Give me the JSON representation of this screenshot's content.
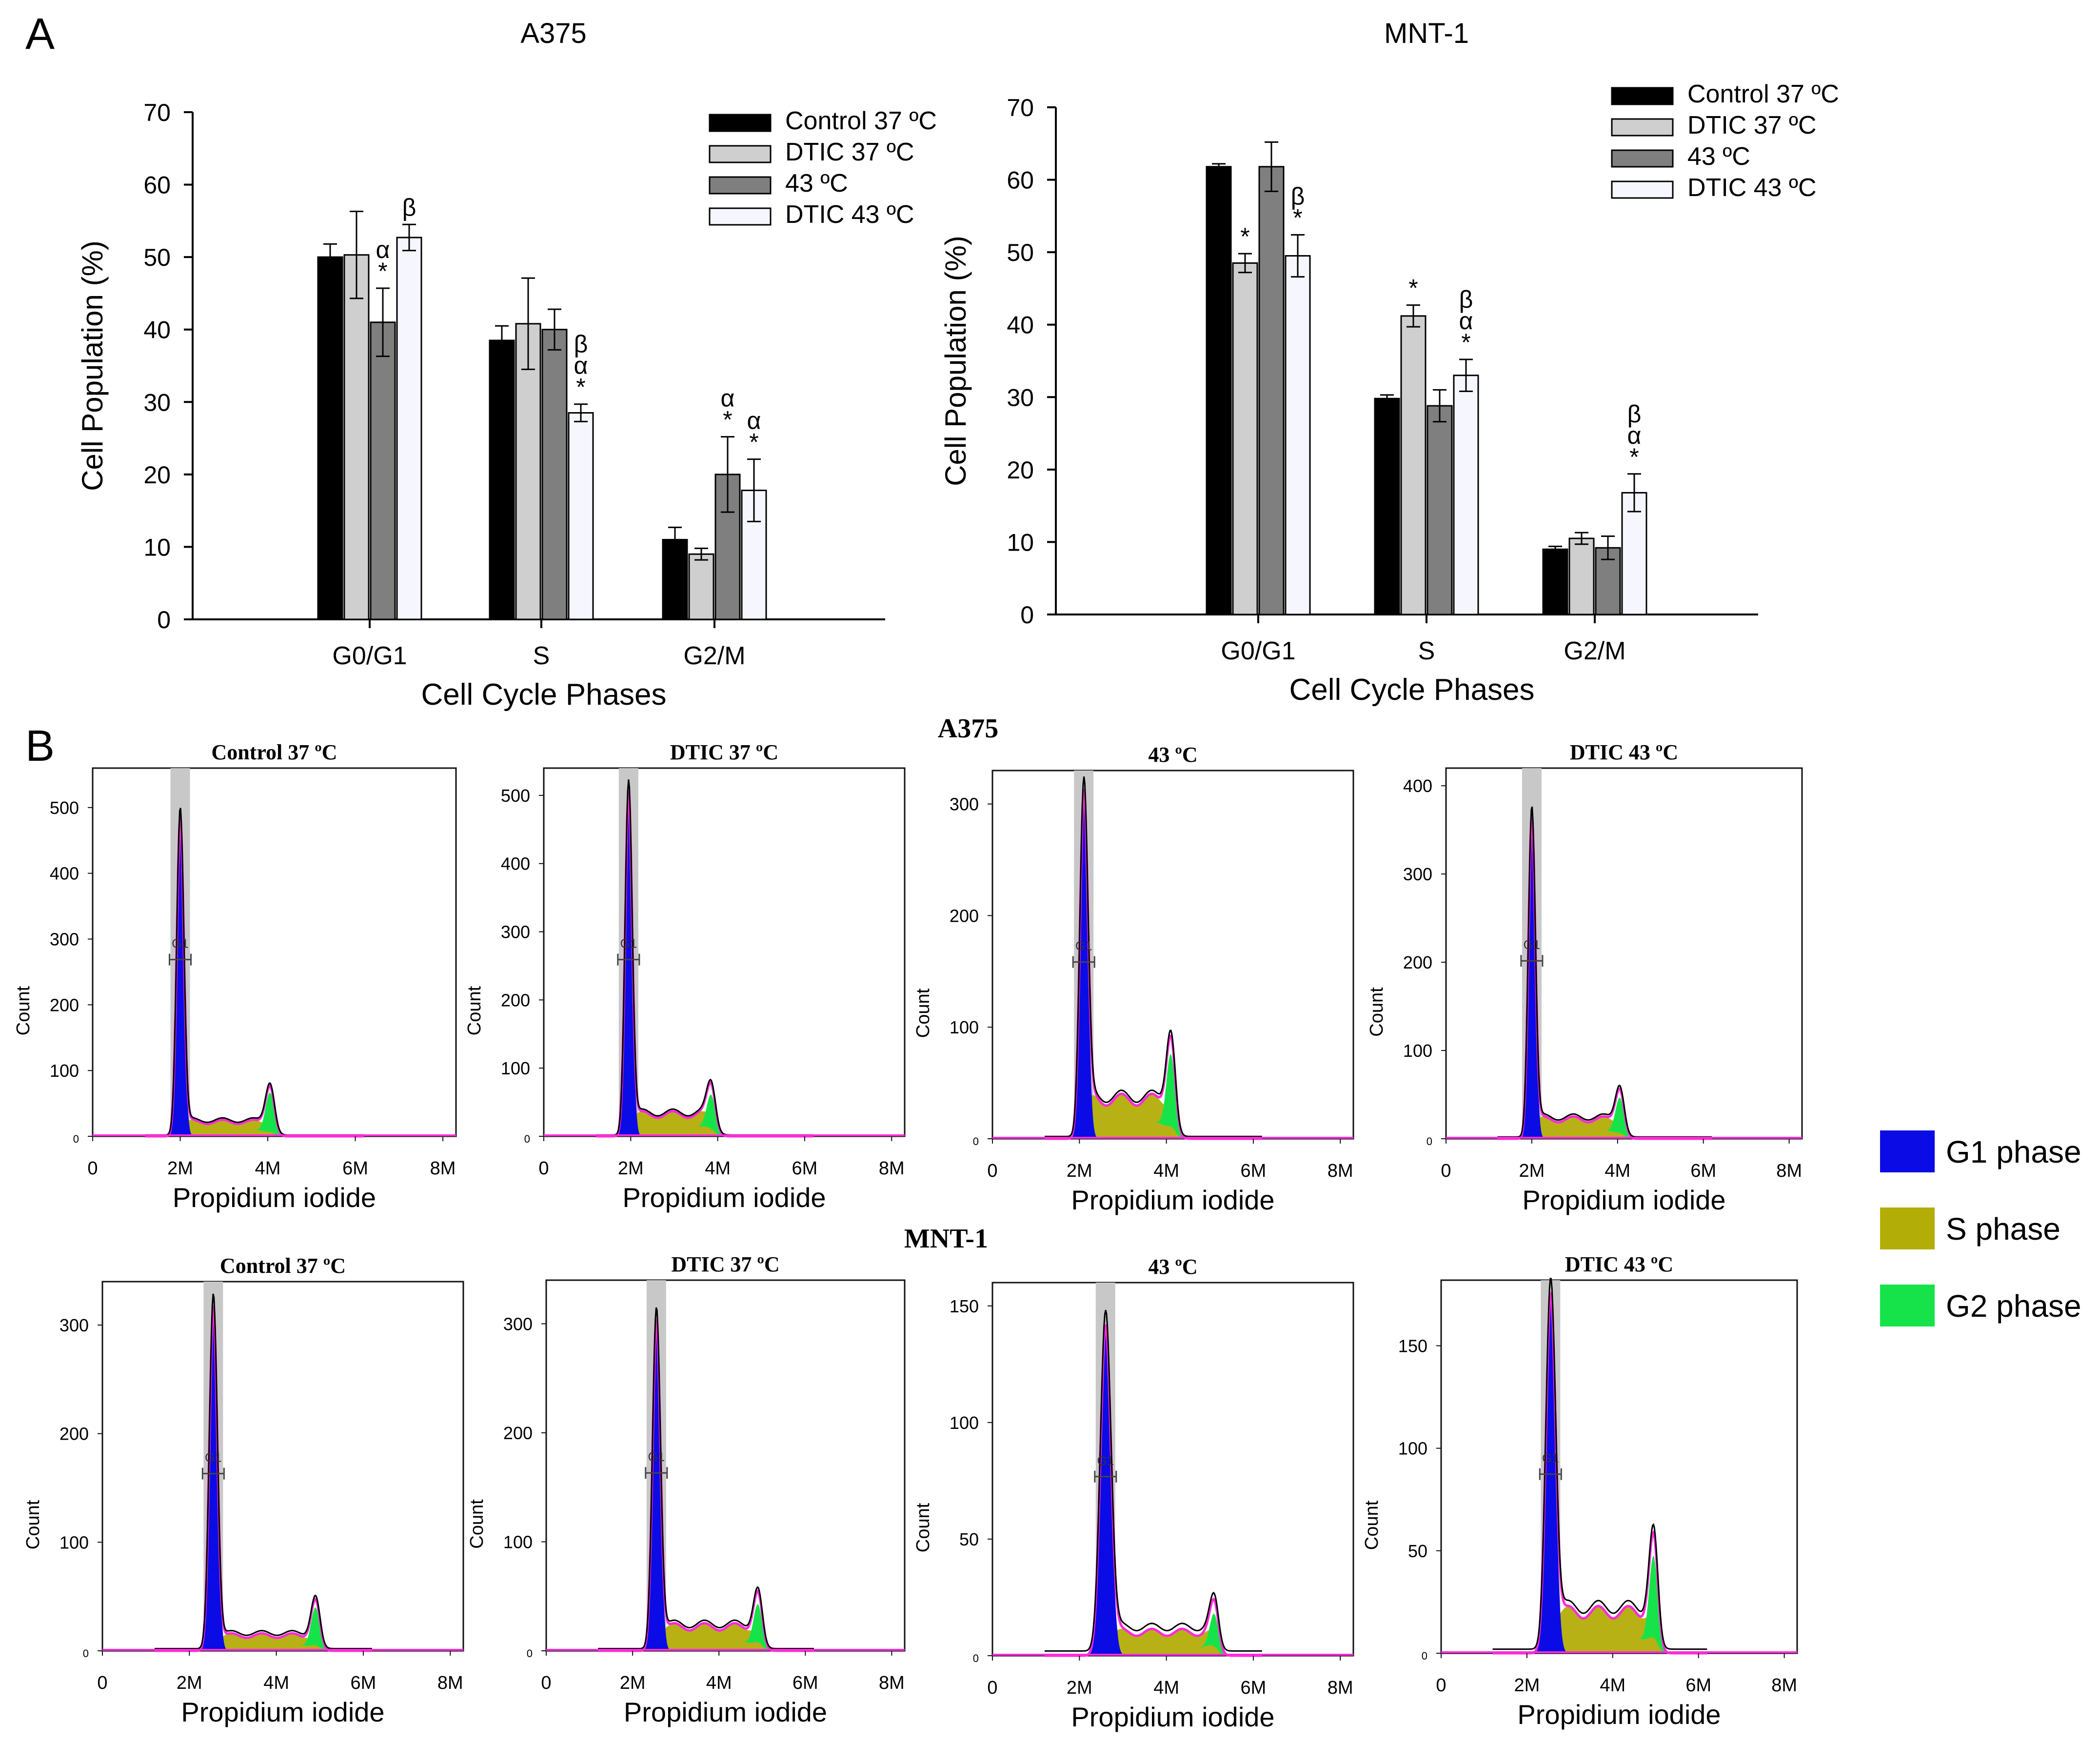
{
  "panel_labels": {
    "a": "A",
    "b": "B"
  },
  "colors": {
    "g1": "#0b0be6",
    "s": "#b3ad08",
    "g2": "#16e34a",
    "fit": "#ff2bd9",
    "gate": "#c8c8c8"
  },
  "legend_b": [
    {
      "label": "G1 phase",
      "color": "#0b0be6"
    },
    {
      "label": "S phase",
      "color": "#b3ad08"
    },
    {
      "label": "G2 phase",
      "color": "#16e34a"
    }
  ],
  "row_titles": [
    "A375",
    "MNT-1"
  ],
  "chart_data": [
    {
      "type": "bar",
      "title": "A375",
      "xlabel": "Cell Cycle Phases",
      "ylabel": "Cell Population (%)",
      "ylim": [
        0,
        70
      ],
      "yticks": [
        0,
        10,
        20,
        30,
        40,
        50,
        60,
        70
      ],
      "legend_position": "top-right",
      "categories": [
        "G0/G1",
        "S",
        "G2/M"
      ],
      "series": [
        {
          "name": "Control 37 ºC",
          "color": "#000000",
          "values": [
            50,
            38.5,
            11
          ],
          "errors": [
            1.8,
            2.0,
            1.7
          ]
        },
        {
          "name": "DTIC 37 ºC",
          "color": "#cfcfcf",
          "values": [
            50.3,
            40.8,
            9
          ],
          "errors": [
            6.0,
            6.3,
            0.8
          ]
        },
        {
          "name": "43 ºC",
          "color": "#7f7f7f",
          "values": [
            41,
            40,
            20
          ],
          "errors": [
            4.7,
            2.8,
            5.2
          ]
        },
        {
          "name": "DTIC 43 ºC",
          "color": "#f6f6ff",
          "values": [
            52.7,
            28.5,
            17.8
          ],
          "errors": [
            1.8,
            1.2,
            4.3
          ]
        }
      ],
      "annotations": [
        {
          "category": 0,
          "series": 2,
          "text": [
            "*",
            "α"
          ]
        },
        {
          "category": 0,
          "series": 3,
          "text": [
            "β"
          ]
        },
        {
          "category": 1,
          "series": 3,
          "text": [
            "*",
            "α",
            "β"
          ]
        },
        {
          "category": 2,
          "series": 2,
          "text": [
            "*",
            "α"
          ]
        },
        {
          "category": 2,
          "series": 3,
          "text": [
            "*",
            "α"
          ]
        }
      ]
    },
    {
      "type": "bar",
      "title": "MNT-1",
      "xlabel": "Cell Cycle Phases",
      "ylabel": "Cell Population (%)",
      "ylim": [
        0,
        70
      ],
      "yticks": [
        0,
        10,
        20,
        30,
        40,
        50,
        60,
        70
      ],
      "legend_position": "top-right",
      "categories": [
        "G0/G1",
        "S",
        "G2/M"
      ],
      "series": [
        {
          "name": "Control 37 ºC",
          "color": "#000000",
          "values": [
            61.8,
            29.8,
            9
          ],
          "errors": [
            0.4,
            0.5,
            0.4
          ]
        },
        {
          "name": "DTIC 37 ºC",
          "color": "#cfcfcf",
          "values": [
            48.5,
            41.2,
            10.5
          ],
          "errors": [
            1.3,
            1.5,
            0.8
          ]
        },
        {
          "name": "43 ºC",
          "color": "#7f7f7f",
          "values": [
            61.8,
            28.8,
            9.2
          ],
          "errors": [
            3.4,
            2.2,
            1.6
          ]
        },
        {
          "name": "DTIC 43 ºC",
          "color": "#f6f6ff",
          "values": [
            49.5,
            33,
            16.8
          ],
          "errors": [
            2.9,
            2.2,
            2.6
          ]
        }
      ],
      "annotations": [
        {
          "category": 0,
          "series": 1,
          "text": [
            "*"
          ]
        },
        {
          "category": 0,
          "series": 3,
          "text": [
            "*",
            "β"
          ]
        },
        {
          "category": 1,
          "series": 1,
          "text": [
            "*"
          ]
        },
        {
          "category": 1,
          "series": 3,
          "text": [
            "*",
            "α",
            "β"
          ]
        },
        {
          "category": 2,
          "series": 3,
          "text": [
            "*",
            "α",
            "β"
          ]
        }
      ]
    }
  ],
  "histograms": [
    {
      "title": "Control 37 ºC",
      "cell_line": "A375",
      "ylabel": "Count",
      "xlabel": "Propidium iodide",
      "yticks": [
        0,
        100,
        200,
        300,
        400,
        500
      ],
      "ymax": 560,
      "xticks": [
        "0",
        "2M",
        "4M",
        "6M",
        "8M"
      ],
      "gate_label": "G1",
      "g1_peak": 2.0,
      "g1_height": 480,
      "g1_width": 0.08,
      "s_level": 22,
      "g2_peak": 4.05,
      "g2_height": 60
    },
    {
      "title": "DTIC 37 ºC",
      "cell_line": "A375",
      "ylabel": "Count",
      "xlabel": "Propidium iodide",
      "yticks": [
        0,
        100,
        200,
        300,
        400,
        500
      ],
      "ymax": 540,
      "xticks": [
        "0",
        "2M",
        "4M",
        "6M",
        "8M"
      ],
      "gate_label": "G1",
      "g1_peak": 1.95,
      "g1_height": 500,
      "g1_width": 0.08,
      "s_level": 32,
      "g2_peak": 3.85,
      "g2_height": 50
    },
    {
      "title": "43 ºC",
      "cell_line": "A375",
      "ylabel": "Count",
      "xlabel": "Propidium iodide",
      "yticks": [
        0,
        100,
        200,
        300
      ],
      "ymax": 330,
      "xticks": [
        "0",
        "2M",
        "4M",
        "6M",
        "8M"
      ],
      "gate_label": "G1",
      "g1_peak": 2.1,
      "g1_height": 305,
      "g1_width": 0.09,
      "s_level": 35,
      "g2_peak": 4.1,
      "g2_height": 65
    },
    {
      "title": "DTIC 43 ºC",
      "cell_line": "A375",
      "ylabel": "Count",
      "xlabel": "Propidium iodide",
      "yticks": [
        0,
        100,
        200,
        300,
        400
      ],
      "ymax": 420,
      "xticks": [
        "0",
        "2M",
        "4M",
        "6M",
        "8M"
      ],
      "gate_label": "G1",
      "g1_peak": 2.0,
      "g1_height": 360,
      "g1_width": 0.08,
      "s_level": 22,
      "g2_peak": 4.05,
      "g2_height": 40
    },
    {
      "title": "Control 37 ºC",
      "cell_line": "MNT-1",
      "ylabel": "Count",
      "xlabel": "Propidium iodide",
      "yticks": [
        0,
        100,
        200,
        300
      ],
      "ymax": 340,
      "xticks": [
        "0",
        "2M",
        "4M",
        "6M",
        "8M"
      ],
      "gate_label": "G1",
      "g1_peak": 2.55,
      "g1_height": 315,
      "g1_width": 0.09,
      "s_level": 14,
      "g2_peak": 4.9,
      "g2_height": 35
    },
    {
      "title": "DTIC 37 ºC",
      "cell_line": "MNT-1",
      "ylabel": "Count",
      "xlabel": "Propidium iodide",
      "yticks": [
        0,
        100,
        200,
        300
      ],
      "ymax": 340,
      "xticks": [
        "0",
        "2M",
        "4M",
        "6M",
        "8M"
      ],
      "gate_label": "G1",
      "g1_peak": 2.55,
      "g1_height": 300,
      "g1_width": 0.09,
      "s_level": 22,
      "g2_peak": 4.9,
      "g2_height": 35
    },
    {
      "title": "43 ºC",
      "cell_line": "MNT-1",
      "ylabel": "Count",
      "xlabel": "Propidium iodide",
      "yticks": [
        0,
        50,
        100,
        150
      ],
      "ymax": 160,
      "xticks": [
        "0",
        "2M",
        "4M",
        "6M",
        "8M"
      ],
      "gate_label": "G1",
      "g1_peak": 2.6,
      "g1_height": 140,
      "g1_width": 0.12,
      "s_level": 10,
      "g2_peak": 5.1,
      "g2_height": 14
    },
    {
      "title": "DTIC 43 ºC",
      "cell_line": "MNT-1",
      "ylabel": "Count",
      "xlabel": "Propidium iodide",
      "yticks": [
        0,
        50,
        100,
        150
      ],
      "ymax": 182,
      "xticks": [
        "0",
        "2M",
        "4M",
        "6M",
        "8M"
      ],
      "gate_label": "G1",
      "g1_peak": 2.55,
      "g1_height": 172,
      "g1_width": 0.11,
      "s_level": 20,
      "g2_peak": 4.95,
      "g2_height": 40
    }
  ]
}
